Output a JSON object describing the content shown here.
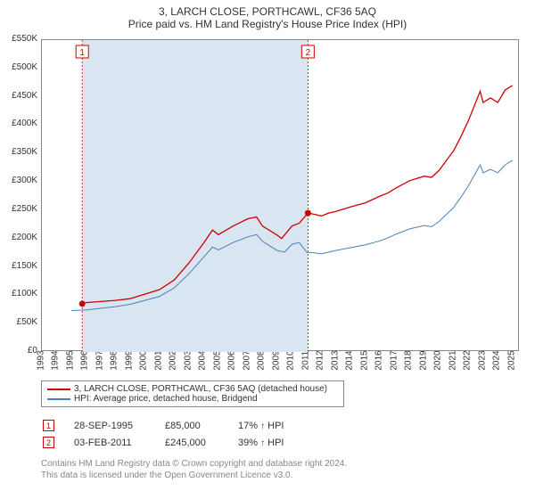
{
  "title": {
    "line1": "3, LARCH CLOSE, PORTHCAWL, CF36 5AQ",
    "line2": "Price paid vs. HM Land Registry's House Price Index (HPI)",
    "fontsize1": 12,
    "fontsize2": 12,
    "color": "#333333"
  },
  "chart": {
    "type": "line",
    "background_color": "#ffffff",
    "plot_border_color": "#888888",
    "grid_color": "#888888",
    "shaded_band_color": "#d9e6f2",
    "marker_dash_color": "#cc0000",
    "xlim": [
      1993,
      2025.5
    ],
    "x_ticks": [
      1993,
      1994,
      1995,
      1996,
      1997,
      1998,
      1999,
      2000,
      2001,
      2002,
      2003,
      2004,
      2005,
      2006,
      2007,
      2008,
      2009,
      2010,
      2011,
      2012,
      2013,
      2014,
      2015,
      2016,
      2017,
      2018,
      2019,
      2020,
      2021,
      2022,
      2023,
      2024,
      2025
    ],
    "x_tick_fontsize": 10,
    "ylim": [
      0,
      550000
    ],
    "y_ticks": [
      0,
      50000,
      100000,
      150000,
      200000,
      250000,
      300000,
      350000,
      400000,
      450000,
      500000,
      550000
    ],
    "y_tick_labels": [
      "£0",
      "£50K",
      "£100K",
      "£150K",
      "£200K",
      "£250K",
      "£300K",
      "£350K",
      "£400K",
      "£450K",
      "£500K",
      "£550K"
    ],
    "y_tick_fontsize": 10,
    "series": [
      {
        "name": "price_paid",
        "color": "#cc0000",
        "line_width": 1.3,
        "data": [
          [
            1995.74,
            85000
          ],
          [
            1996,
            87000
          ],
          [
            1997,
            89000
          ],
          [
            1998,
            91000
          ],
          [
            1999,
            94000
          ],
          [
            2000,
            102000
          ],
          [
            2001,
            110000
          ],
          [
            2002,
            127000
          ],
          [
            2003,
            157000
          ],
          [
            2004,
            192000
          ],
          [
            2004.6,
            215000
          ],
          [
            2005,
            207000
          ],
          [
            2006,
            222000
          ],
          [
            2007,
            235000
          ],
          [
            2007.6,
            238000
          ],
          [
            2008,
            222000
          ],
          [
            2009,
            206000
          ],
          [
            2009.3,
            200000
          ],
          [
            2010,
            222000
          ],
          [
            2010.5,
            227000
          ],
          [
            2011.09,
            245000
          ],
          [
            2011.5,
            243000
          ],
          [
            2012,
            240000
          ],
          [
            2012.5,
            245000
          ],
          [
            2013,
            248000
          ],
          [
            2014,
            256000
          ],
          [
            2015,
            263000
          ],
          [
            2016,
            275000
          ],
          [
            2016.5,
            280000
          ],
          [
            2017,
            288000
          ],
          [
            2018,
            302000
          ],
          [
            2019,
            310000
          ],
          [
            2019.5,
            308000
          ],
          [
            2020,
            320000
          ],
          [
            2021,
            355000
          ],
          [
            2021.5,
            380000
          ],
          [
            2022,
            408000
          ],
          [
            2022.5,
            440000
          ],
          [
            2022.8,
            460000
          ],
          [
            2023,
            440000
          ],
          [
            2023.5,
            448000
          ],
          [
            2024,
            440000
          ],
          [
            2024.5,
            462000
          ],
          [
            2025,
            470000
          ]
        ]
      },
      {
        "name": "hpi",
        "color": "#4a7ebb",
        "line_width": 1.0,
        "data": [
          [
            1995,
            73000
          ],
          [
            1996,
            74000
          ],
          [
            1997,
            77000
          ],
          [
            1998,
            80000
          ],
          [
            1999,
            84000
          ],
          [
            2000,
            91000
          ],
          [
            2001,
            98000
          ],
          [
            2002,
            113000
          ],
          [
            2003,
            138000
          ],
          [
            2004,
            167000
          ],
          [
            2004.6,
            185000
          ],
          [
            2005,
            180000
          ],
          [
            2006,
            193000
          ],
          [
            2007,
            203000
          ],
          [
            2007.6,
            207000
          ],
          [
            2008,
            195000
          ],
          [
            2009,
            179000
          ],
          [
            2009.5,
            176000
          ],
          [
            2010,
            190000
          ],
          [
            2010.5,
            193000
          ],
          [
            2011,
            176000
          ],
          [
            2011.5,
            175000
          ],
          [
            2012,
            173000
          ],
          [
            2012.5,
            176000
          ],
          [
            2013,
            179000
          ],
          [
            2014,
            184000
          ],
          [
            2015,
            189000
          ],
          [
            2016,
            196000
          ],
          [
            2016.5,
            201000
          ],
          [
            2017,
            207000
          ],
          [
            2018,
            217000
          ],
          [
            2019,
            223000
          ],
          [
            2019.5,
            221000
          ],
          [
            2020,
            230000
          ],
          [
            2021,
            255000
          ],
          [
            2021.5,
            273000
          ],
          [
            2022,
            293000
          ],
          [
            2022.5,
            316000
          ],
          [
            2022.8,
            330000
          ],
          [
            2023,
            316000
          ],
          [
            2023.5,
            322000
          ],
          [
            2024,
            316000
          ],
          [
            2024.5,
            330000
          ],
          [
            2025,
            338000
          ]
        ]
      }
    ],
    "sale_markers": [
      {
        "label": "1",
        "x": 1995.74,
        "price": 85000
      },
      {
        "label": "2",
        "x": 2011.09,
        "price": 245000
      }
    ]
  },
  "legend": {
    "items": [
      {
        "color": "#cc0000",
        "text": "3, LARCH CLOSE, PORTHCAWL, CF36 5AQ (detached house)"
      },
      {
        "color": "#4a7ebb",
        "text": "HPI: Average price, detached house, Bridgend"
      }
    ],
    "fontsize": 10
  },
  "sales": [
    {
      "marker": "1",
      "date": "28-SEP-1995",
      "price": "£85,000",
      "pct": "17% ",
      "dir": "↑",
      "vs": " HPI"
    },
    {
      "marker": "2",
      "date": "03-FEB-2011",
      "price": "£245,000",
      "pct": "39% ",
      "dir": "↑",
      "vs": " HPI"
    }
  ],
  "footer": {
    "line1": "Contains HM Land Registry data © Crown copyright and database right 2024.",
    "line2": "This data is licensed under the Open Government Licence v3.0."
  }
}
